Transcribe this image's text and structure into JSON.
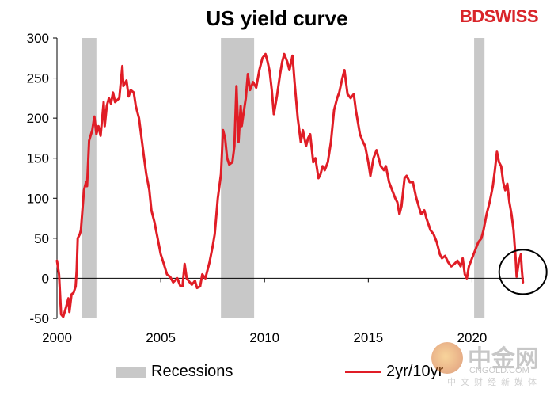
{
  "chart_data": {
    "type": "line",
    "title": "US yield curve",
    "xlabel": "",
    "ylabel": "",
    "xlim": [
      2000,
      2022.5
    ],
    "ylim": [
      -50,
      300
    ],
    "yticks": [
      300,
      250,
      200,
      150,
      100,
      50,
      0,
      -50
    ],
    "xticks": [
      2000,
      2005,
      2010,
      2015,
      2020
    ],
    "grid": false,
    "legend_position": "bottom",
    "recessions": [
      {
        "start": 2001.2,
        "end": 2001.9
      },
      {
        "start": 2007.9,
        "end": 2009.5
      },
      {
        "start": 2020.1,
        "end": 2020.6
      }
    ],
    "series": [
      {
        "name": "2yr/10yr",
        "color": "#e01d26",
        "points": [
          [
            2000.0,
            22
          ],
          [
            2000.1,
            5
          ],
          [
            2000.2,
            -45
          ],
          [
            2000.3,
            -48
          ],
          [
            2000.45,
            -35
          ],
          [
            2000.55,
            -25
          ],
          [
            2000.6,
            -42
          ],
          [
            2000.7,
            -20
          ],
          [
            2000.8,
            -18
          ],
          [
            2000.9,
            -10
          ],
          [
            2000.95,
            10
          ],
          [
            2001.0,
            50
          ],
          [
            2001.1,
            55
          ],
          [
            2001.15,
            60
          ],
          [
            2001.3,
            110
          ],
          [
            2001.4,
            120
          ],
          [
            2001.45,
            115
          ],
          [
            2001.55,
            172
          ],
          [
            2001.7,
            185
          ],
          [
            2001.8,
            202
          ],
          [
            2001.9,
            180
          ],
          [
            2002.0,
            190
          ],
          [
            2002.1,
            178
          ],
          [
            2002.25,
            220
          ],
          [
            2002.3,
            190
          ],
          [
            2002.4,
            215
          ],
          [
            2002.5,
            225
          ],
          [
            2002.6,
            218
          ],
          [
            2002.7,
            232
          ],
          [
            2002.8,
            220
          ],
          [
            2003.0,
            225
          ],
          [
            2003.15,
            265
          ],
          [
            2003.2,
            240
          ],
          [
            2003.35,
            247
          ],
          [
            2003.45,
            227
          ],
          [
            2003.55,
            235
          ],
          [
            2003.7,
            232
          ],
          [
            2003.8,
            215
          ],
          [
            2003.95,
            200
          ],
          [
            2004.1,
            170
          ],
          [
            2004.2,
            150
          ],
          [
            2004.3,
            130
          ],
          [
            2004.45,
            110
          ],
          [
            2004.55,
            85
          ],
          [
            2004.7,
            70
          ],
          [
            2004.85,
            50
          ],
          [
            2005.0,
            30
          ],
          [
            2005.15,
            18
          ],
          [
            2005.3,
            5
          ],
          [
            2005.45,
            2
          ],
          [
            2005.6,
            -5
          ],
          [
            2005.8,
            0
          ],
          [
            2005.95,
            -10
          ],
          [
            2006.05,
            -10
          ],
          [
            2006.15,
            18
          ],
          [
            2006.25,
            0
          ],
          [
            2006.4,
            -5
          ],
          [
            2006.5,
            -8
          ],
          [
            2006.65,
            -3
          ],
          [
            2006.75,
            -12
          ],
          [
            2006.9,
            -10
          ],
          [
            2007.0,
            5
          ],
          [
            2007.15,
            0
          ],
          [
            2007.35,
            20
          ],
          [
            2007.5,
            40
          ],
          [
            2007.6,
            55
          ],
          [
            2007.75,
            100
          ],
          [
            2007.9,
            130
          ],
          [
            2008.0,
            185
          ],
          [
            2008.1,
            175
          ],
          [
            2008.2,
            150
          ],
          [
            2008.3,
            142
          ],
          [
            2008.45,
            145
          ],
          [
            2008.55,
            165
          ],
          [
            2008.65,
            240
          ],
          [
            2008.75,
            170
          ],
          [
            2008.85,
            215
          ],
          [
            2008.9,
            190
          ],
          [
            2009.0,
            208
          ],
          [
            2009.1,
            225
          ],
          [
            2009.2,
            255
          ],
          [
            2009.3,
            235
          ],
          [
            2009.45,
            245
          ],
          [
            2009.6,
            238
          ],
          [
            2009.75,
            260
          ],
          [
            2009.9,
            275
          ],
          [
            2010.05,
            280
          ],
          [
            2010.15,
            270
          ],
          [
            2010.25,
            258
          ],
          [
            2010.35,
            235
          ],
          [
            2010.45,
            205
          ],
          [
            2010.6,
            228
          ],
          [
            2010.75,
            255
          ],
          [
            2010.85,
            270
          ],
          [
            2010.95,
            280
          ],
          [
            2011.1,
            270
          ],
          [
            2011.2,
            260
          ],
          [
            2011.35,
            278
          ],
          [
            2011.45,
            245
          ],
          [
            2011.6,
            200
          ],
          [
            2011.75,
            170
          ],
          [
            2011.85,
            185
          ],
          [
            2012.0,
            165
          ],
          [
            2012.1,
            175
          ],
          [
            2012.2,
            180
          ],
          [
            2012.35,
            145
          ],
          [
            2012.45,
            150
          ],
          [
            2012.6,
            125
          ],
          [
            2012.7,
            130
          ],
          [
            2012.8,
            140
          ],
          [
            2012.9,
            135
          ],
          [
            2013.05,
            145
          ],
          [
            2013.2,
            170
          ],
          [
            2013.35,
            210
          ],
          [
            2013.5,
            225
          ],
          [
            2013.6,
            232
          ],
          [
            2013.75,
            250
          ],
          [
            2013.85,
            260
          ],
          [
            2014.0,
            230
          ],
          [
            2014.15,
            225
          ],
          [
            2014.3,
            230
          ],
          [
            2014.4,
            210
          ],
          [
            2014.5,
            195
          ],
          [
            2014.6,
            180
          ],
          [
            2014.75,
            170
          ],
          [
            2014.85,
            165
          ],
          [
            2015.0,
            145
          ],
          [
            2015.1,
            128
          ],
          [
            2015.25,
            150
          ],
          [
            2015.4,
            160
          ],
          [
            2015.5,
            150
          ],
          [
            2015.6,
            140
          ],
          [
            2015.75,
            135
          ],
          [
            2015.85,
            140
          ],
          [
            2016.0,
            120
          ],
          [
            2016.15,
            110
          ],
          [
            2016.3,
            100
          ],
          [
            2016.4,
            95
          ],
          [
            2016.5,
            80
          ],
          [
            2016.6,
            90
          ],
          [
            2016.75,
            125
          ],
          [
            2016.85,
            128
          ],
          [
            2017.0,
            120
          ],
          [
            2017.15,
            120
          ],
          [
            2017.3,
            102
          ],
          [
            2017.45,
            88
          ],
          [
            2017.55,
            80
          ],
          [
            2017.7,
            85
          ],
          [
            2017.8,
            75
          ],
          [
            2018.0,
            60
          ],
          [
            2018.15,
            55
          ],
          [
            2018.3,
            45
          ],
          [
            2018.45,
            30
          ],
          [
            2018.55,
            25
          ],
          [
            2018.7,
            28
          ],
          [
            2018.85,
            20
          ],
          [
            2019.0,
            15
          ],
          [
            2019.15,
            18
          ],
          [
            2019.3,
            22
          ],
          [
            2019.45,
            15
          ],
          [
            2019.55,
            25
          ],
          [
            2019.65,
            5
          ],
          [
            2019.75,
            0
          ],
          [
            2019.85,
            15
          ],
          [
            2020.0,
            25
          ],
          [
            2020.15,
            35
          ],
          [
            2020.3,
            45
          ],
          [
            2020.45,
            50
          ],
          [
            2020.55,
            60
          ],
          [
            2020.7,
            80
          ],
          [
            2020.85,
            95
          ],
          [
            2021.0,
            115
          ],
          [
            2021.1,
            135
          ],
          [
            2021.2,
            158
          ],
          [
            2021.3,
            145
          ],
          [
            2021.4,
            140
          ],
          [
            2021.5,
            120
          ],
          [
            2021.6,
            110
          ],
          [
            2021.7,
            118
          ],
          [
            2021.8,
            95
          ],
          [
            2021.9,
            80
          ],
          [
            2022.0,
            60
          ],
          [
            2022.1,
            25
          ],
          [
            2022.15,
            2
          ],
          [
            2022.25,
            20
          ],
          [
            2022.3,
            25
          ],
          [
            2022.35,
            30
          ],
          [
            2022.4,
            10
          ],
          [
            2022.45,
            -5
          ]
        ]
      }
    ],
    "legend": {
      "recessions_label": "Recessions",
      "series_label": "2yr/10yr"
    },
    "annotation": "circle around latest inversion"
  },
  "brand": {
    "bd": "BD",
    "swiss": "SWISS"
  },
  "watermark": {
    "cn": "中金网",
    "en": "CNGOLD.COM",
    "sub": "中文财经新媒体"
  },
  "colors": {
    "line": "#e01d26",
    "recession": "#c8c8c8",
    "axis": "#000000"
  }
}
